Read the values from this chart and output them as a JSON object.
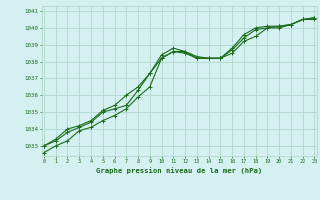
{
  "title": "Graphe pression niveau de la mer (hPa)",
  "background_color": "#d4f0f0",
  "grid_color": "#b0d8cc",
  "line_color": "#1a6b1a",
  "x_values": [
    0,
    1,
    2,
    3,
    4,
    5,
    6,
    7,
    8,
    9,
    10,
    11,
    12,
    13,
    14,
    15,
    16,
    17,
    18,
    19,
    20,
    21,
    22,
    23
  ],
  "series1": [
    1032.6,
    1033.0,
    1033.3,
    1033.9,
    1034.1,
    1034.5,
    1034.8,
    1035.2,
    1035.9,
    1036.5,
    1038.2,
    1038.6,
    1038.6,
    1038.2,
    1038.2,
    1038.2,
    1038.5,
    1039.2,
    1039.5,
    1040.0,
    1040.0,
    1040.2,
    1040.5,
    1040.5
  ],
  "series2": [
    1033.0,
    1033.3,
    1033.8,
    1034.1,
    1034.4,
    1035.0,
    1035.2,
    1035.4,
    1036.3,
    1037.3,
    1038.2,
    1038.6,
    1038.5,
    1038.2,
    1038.2,
    1038.2,
    1038.7,
    1039.4,
    1039.9,
    1040.0,
    1040.1,
    1040.2,
    1040.5,
    1040.6
  ],
  "series3": [
    1033.0,
    1033.4,
    1034.0,
    1034.2,
    1034.5,
    1035.1,
    1035.4,
    1036.0,
    1036.5,
    1037.3,
    1038.4,
    1038.8,
    1038.6,
    1038.3,
    1038.2,
    1038.2,
    1038.8,
    1039.6,
    1040.0,
    1040.1,
    1040.1,
    1040.2,
    1040.5,
    1040.6
  ],
  "ylim_min": 1032.4,
  "ylim_max": 1041.3,
  "yticks": [
    1033,
    1034,
    1035,
    1036,
    1037,
    1038,
    1039,
    1040,
    1041
  ],
  "xlim_min": -0.2,
  "xlim_max": 23.2
}
